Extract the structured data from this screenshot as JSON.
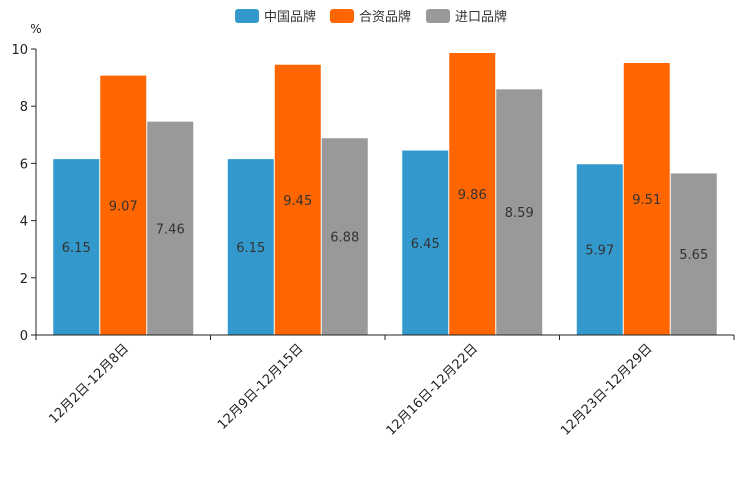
{
  "chart_data": {
    "type": "bar",
    "title": "",
    "xlabel": "",
    "ylabel": "%",
    "ylim": [
      0,
      10
    ],
    "yticks": [
      0,
      2,
      4,
      6,
      8,
      10
    ],
    "legend_position": "top-center",
    "grid": false,
    "categories": [
      "12月2日-12月8日",
      "12月9日-12月15日",
      "12月16日-12月22日",
      "12月23日-12月29日"
    ],
    "series": [
      {
        "name": "中国品牌",
        "color": "#3399cc",
        "values": [
          6.15,
          6.15,
          6.45,
          5.97
        ]
      },
      {
        "name": "合资品牌",
        "color": "#ff6600",
        "values": [
          9.07,
          9.45,
          9.86,
          9.51
        ]
      },
      {
        "name": "进口品牌",
        "color": "#999999",
        "values": [
          7.46,
          6.88,
          8.59,
          5.65
        ]
      }
    ]
  }
}
